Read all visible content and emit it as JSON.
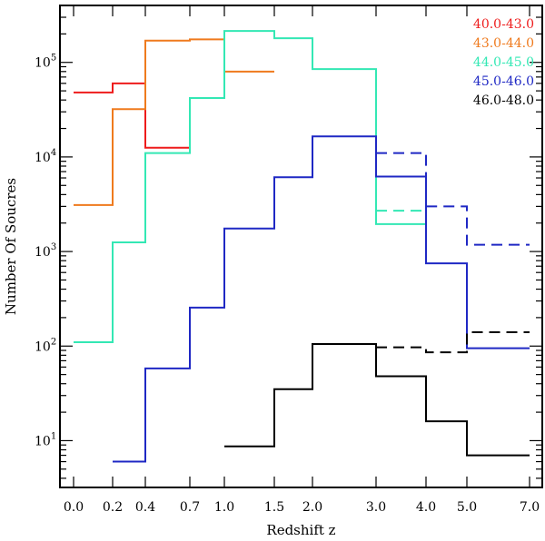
{
  "chart_data": {
    "type": "line",
    "style": "step",
    "title": "",
    "xlabel": "Redshift  z",
    "ylabel": "Number Of Soucres",
    "yscale": "log",
    "ylim": [
      3.2,
      400000
    ],
    "grid": false,
    "legend_position": "top-right",
    "x_ticks": [
      "0.0",
      "0.2",
      "0.4",
      "0.7",
      "1.0",
      "1.5",
      "2.0",
      "3.0",
      "4.0",
      "5.0",
      "7.0"
    ],
    "y_ticks": [
      {
        "base": "10",
        "exp": "1",
        "value": 10
      },
      {
        "base": "10",
        "exp": "2",
        "value": 100
      },
      {
        "base": "10",
        "exp": "3",
        "value": 1000
      },
      {
        "base": "10",
        "exp": "4",
        "value": 10000
      },
      {
        "base": "10",
        "exp": "5",
        "value": 100000
      }
    ],
    "series": [
      {
        "name": "40.0-43.0",
        "color": "#ee1c1c",
        "line_style": "solid",
        "edges": [
          "0.0",
          "0.2",
          "0.4",
          "0.7"
        ],
        "values": [
          48000,
          60000,
          12500
        ]
      },
      {
        "name": "43.0-44.0",
        "color": "#ef7a1d",
        "line_style": "solid",
        "edges": [
          "0.0",
          "0.2",
          "0.4",
          "0.7",
          "1.0",
          "1.5"
        ],
        "values": [
          3100,
          32000,
          170000,
          175000,
          80000
        ]
      },
      {
        "name": "44.0-45.0",
        "color": "#33e8b4",
        "line_style": "solid",
        "edges": [
          "0.0",
          "0.2",
          "0.4",
          "0.7",
          "1.0",
          "1.5",
          "2.0",
          "3.0",
          "4.0"
        ],
        "values": [
          110,
          1250,
          11000,
          42000,
          215000,
          180000,
          85000,
          1950
        ]
      },
      {
        "name": "45.0-46.0",
        "color": "#1f28c4",
        "line_style": "solid",
        "edges": [
          "0.2",
          "0.4",
          "0.7",
          "1.0",
          "1.5",
          "2.0",
          "3.0",
          "4.0",
          "5.0",
          "7.0"
        ],
        "values": [
          6,
          58,
          255,
          1750,
          6100,
          16500,
          6200,
          750,
          95
        ]
      },
      {
        "name": "46.0-48.0",
        "color": "#000000",
        "line_style": "solid",
        "edges": [
          "1.0",
          "1.5",
          "2.0",
          "3.0",
          "4.0",
          "5.0",
          "7.0"
        ],
        "values": [
          8.7,
          35,
          105,
          48,
          16,
          7
        ]
      },
      {
        "name": "44.0-45.0 (dashed)",
        "color": "#33e8b4",
        "line_style": "dashed",
        "edges": [
          "3.0",
          "4.0"
        ],
        "values": [
          2700
        ]
      },
      {
        "name": "45.0-46.0 (dashed)",
        "color": "#1f28c4",
        "line_style": "dashed",
        "edges": [
          "3.0",
          "4.0",
          "5.0",
          "7.0"
        ],
        "values": [
          11000,
          3000,
          1180
        ]
      },
      {
        "name": "46.0-48.0 (dashed)",
        "color": "#000000",
        "line_style": "dashed",
        "edges": [
          "3.0",
          "4.0",
          "5.0",
          "7.0"
        ],
        "values": [
          97,
          86,
          140
        ]
      }
    ],
    "legend": [
      {
        "label": "40.0-43.0",
        "color": "#ee1c1c"
      },
      {
        "label": "43.0-44.0",
        "color": "#ef7a1d"
      },
      {
        "label": "44.0-45.0",
        "color": "#33e8b4"
      },
      {
        "label": "45.0-46.0",
        "color": "#1f28c4"
      },
      {
        "label": "46.0-48.0",
        "color": "#000000"
      }
    ]
  }
}
